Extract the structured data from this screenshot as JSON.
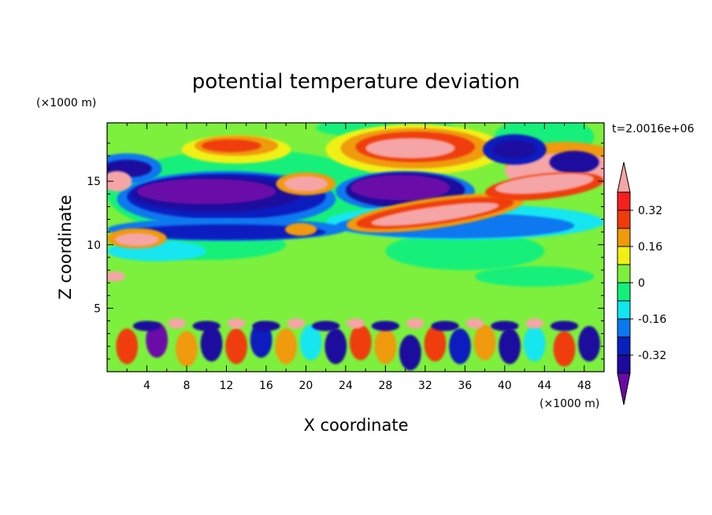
{
  "chart_data": {
    "type": "heatmap",
    "title": "potential temperature deviation",
    "xlabel": "X coordinate",
    "ylabel": "Z coordinate",
    "x_unit": "(×1000 m)",
    "y_unit": "(×1000 m)",
    "time_label": "t=2.0016e+06",
    "xlim": [
      0,
      50
    ],
    "ylim": [
      0,
      19.6
    ],
    "x_ticks": [
      4,
      8,
      12,
      16,
      20,
      24,
      28,
      32,
      36,
      40,
      44,
      48
    ],
    "y_ticks": [
      5,
      10,
      15
    ],
    "colorbar": {
      "levels": [
        -0.4,
        -0.32,
        -0.24,
        -0.16,
        -0.08,
        0,
        0.08,
        0.16,
        0.24,
        0.32,
        0.4
      ],
      "colors": [
        "#6a0aa8",
        "#1c0a9e",
        "#0a1fbf",
        "#0a78f0",
        "#12e6f0",
        "#14f07a",
        "#7cf03c",
        "#f0f014",
        "#f09a0a",
        "#f03c0a",
        "#f5201e",
        "#f5a5a5"
      ],
      "labels": [
        "0.32",
        "0.16",
        "0",
        "-0.16",
        "-0.32"
      ],
      "label_values": [
        0.32,
        0.16,
        0,
        -0.16,
        -0.32
      ]
    }
  }
}
